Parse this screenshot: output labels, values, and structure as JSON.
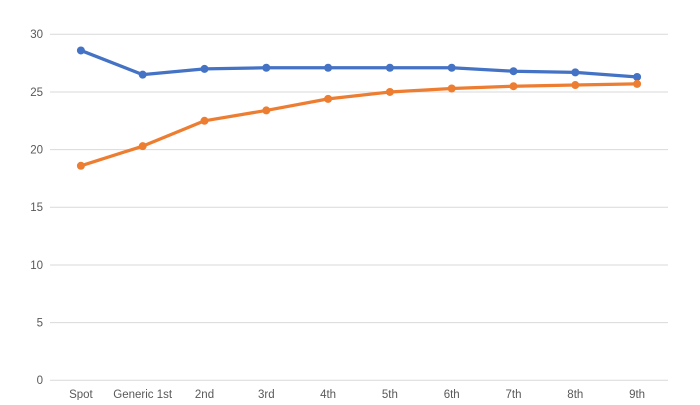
{
  "chart_data": {
    "type": "line",
    "title": "",
    "xlabel": "",
    "ylabel": "",
    "categories": [
      "Spot",
      "Generic 1st",
      "2nd",
      "3rd",
      "4th",
      "5th",
      "6th",
      "7th",
      "8th",
      "9th"
    ],
    "series": [
      {
        "name": "",
        "color": "#4472C4",
        "values": [
          28.6,
          26.5,
          27.0,
          27.1,
          27.1,
          27.1,
          27.1,
          26.8,
          26.7,
          26.3
        ]
      },
      {
        "name": "",
        "color": "#ED7D31",
        "values": [
          18.6,
          20.3,
          22.5,
          23.4,
          24.4,
          25.0,
          25.3,
          25.5,
          25.6,
          25.7
        ]
      }
    ],
    "ylim": [
      0,
      30
    ],
    "yticks": [
      0,
      5,
      10,
      15,
      20,
      25,
      30
    ],
    "ytick_labels": [
      "0",
      "5",
      "10",
      "15",
      "20",
      "25",
      "30"
    ],
    "grid": true,
    "legend": "none",
    "gridline_color": "#D9D9D9",
    "tick_label_color": "#595959",
    "background_color": "#FFFFFF"
  }
}
